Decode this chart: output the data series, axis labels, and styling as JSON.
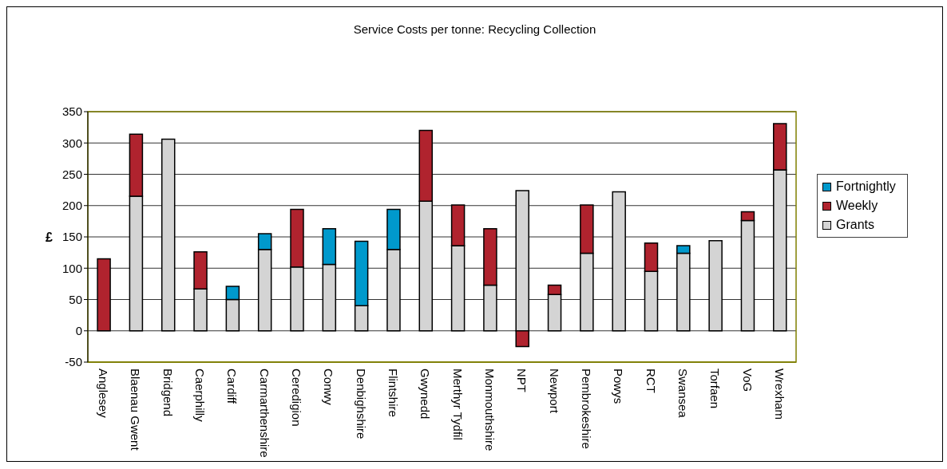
{
  "chart_data": {
    "type": "bar",
    "title": "Service Costs per tonne: Recycling Collection",
    "ylabel": "£",
    "categories": [
      "Anglesey",
      "Blaenau Gwent",
      "Bridgend",
      "Caerphilly",
      "Cardiff",
      "Carmarthenshire",
      "Ceredigion",
      "Conwy",
      "Denbighshire",
      "Flintshire",
      "Gwynedd",
      "Merthyr Tydfil",
      "Monmouthshire",
      "NPT",
      "Newport",
      "Pembrokeshire",
      "Powys",
      "RCT",
      "Swansea",
      "Torfaen",
      "VoG",
      "Wrexham"
    ],
    "series": [
      {
        "name": "Grants",
        "color": "#d4d4d4",
        "values": [
          null,
          215,
          306,
          67,
          50,
          130,
          102,
          106,
          40,
          130,
          207,
          136,
          73,
          224,
          58,
          124,
          222,
          95,
          124,
          144,
          176,
          257
        ]
      },
      {
        "name": "Weekly",
        "color": "#b0232e",
        "values": [
          115,
          99,
          null,
          59,
          null,
          null,
          92,
          null,
          null,
          null,
          113,
          65,
          90,
          -25,
          15,
          77,
          null,
          45,
          null,
          null,
          14,
          74
        ]
      },
      {
        "name": "Fortnightly",
        "color": "#0099cc",
        "values": [
          null,
          null,
          null,
          null,
          21,
          25,
          null,
          57,
          103,
          64,
          null,
          null,
          null,
          null,
          null,
          null,
          null,
          null,
          12,
          null,
          null,
          null
        ]
      }
    ],
    "stacked": true,
    "ylim": [
      -50,
      350
    ],
    "yticks": [
      -50,
      0,
      50,
      100,
      150,
      200,
      250,
      300,
      350
    ],
    "grid": "y",
    "legend": "right"
  }
}
